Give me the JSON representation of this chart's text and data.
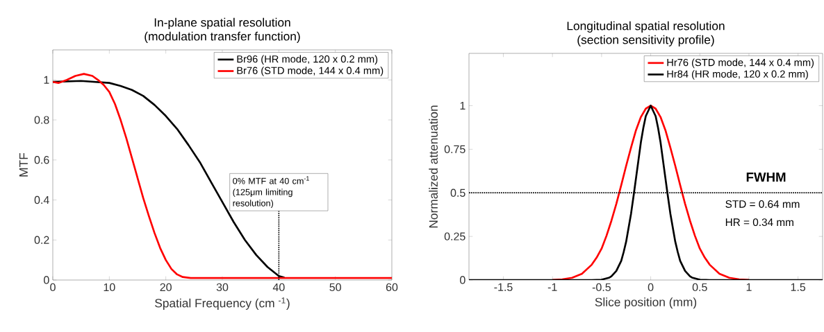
{
  "chart_data": [
    {
      "type": "line",
      "title": "In-plane spatial resolution",
      "subtitle": "(modulation transfer function)",
      "xlabel": "Spatial Frequency (cm $^{-1}$)",
      "ylabel": "MTF",
      "xlim": [
        0,
        60
      ],
      "ylim": [
        0,
        1.15
      ],
      "xticks": [
        0,
        10,
        20,
        30,
        40,
        50,
        60
      ],
      "yticks": [
        0,
        0.2,
        0.4,
        0.6,
        0.8,
        1
      ],
      "legend": "top right",
      "grid": false,
      "series": [
        {
          "name": "Br96 (HR mode, 120 x 0.2 mm)",
          "color": "#000000",
          "x": [
            0,
            5,
            10,
            12,
            14,
            16,
            18,
            20,
            22,
            24,
            26,
            28,
            30,
            32,
            34,
            36,
            38,
            40,
            41
          ],
          "values": [
            0.99,
            0.995,
            0.985,
            0.97,
            0.95,
            0.92,
            0.875,
            0.82,
            0.755,
            0.675,
            0.59,
            0.49,
            0.39,
            0.29,
            0.2,
            0.125,
            0.065,
            0.02,
            0.012
          ]
        },
        {
          "name": "Br76 (STD mode, 144 x 0.4 mm)",
          "color": "#ff0000",
          "x": [
            0,
            1,
            2.5,
            4,
            5.5,
            7,
            8,
            9,
            10,
            11,
            12,
            13,
            14,
            15,
            16,
            17,
            18,
            19,
            20,
            21,
            22,
            23,
            24.4,
            30,
            40,
            50,
            60
          ],
          "values": [
            0.99,
            0.985,
            1.0,
            1.02,
            1.03,
            1.02,
            1.0,
            0.975,
            0.94,
            0.88,
            0.8,
            0.71,
            0.61,
            0.51,
            0.41,
            0.32,
            0.235,
            0.16,
            0.1,
            0.055,
            0.028,
            0.015,
            0.01,
            0.01,
            0.01,
            0.01,
            0.01
          ]
        }
      ],
      "ref_lines": [
        {
          "axis": "x",
          "value": 40,
          "color": "#000000",
          "line_style": "dotted",
          "label": "0% MTF at 40 cm$^{-1}$ (125μm limiting resolution)"
        }
      ]
    },
    {
      "type": "line",
      "title": "Longitudinal spatial resolution",
      "subtitle": "(section sensitivity profile)",
      "xlabel": "Slice position (mm)",
      "ylabel": "Normalized attenuation",
      "xlim": [
        -1.85,
        1.75
      ],
      "ylim": [
        0,
        1.3
      ],
      "xticks": [
        -1.5,
        -1,
        -0.5,
        0,
        0.5,
        1,
        1.5
      ],
      "yticks": [
        0,
        0.25,
        0.5,
        0.75,
        1
      ],
      "legend": "top right",
      "grid": false,
      "series": [
        {
          "name": "Hr76 (STD mode, 144 x 0.4 mm)",
          "color": "#ff0000",
          "x": [
            -1.0,
            -0.9,
            -0.8,
            -0.7,
            -0.6,
            -0.55,
            -0.5,
            -0.45,
            -0.4,
            -0.35,
            -0.3,
            -0.25,
            -0.2,
            -0.15,
            -0.1,
            -0.05,
            0,
            0.05,
            0.1,
            0.15,
            0.2,
            0.25,
            0.3,
            0.35,
            0.4,
            0.45,
            0.5,
            0.55,
            0.6,
            0.7,
            0.8,
            0.9,
            1.0
          ],
          "values": [
            0.001,
            0.004,
            0.013,
            0.036,
            0.088,
            0.129,
            0.18,
            0.254,
            0.34,
            0.437,
            0.544,
            0.655,
            0.76,
            0.859,
            0.935,
            0.983,
            1,
            0.983,
            0.935,
            0.859,
            0.76,
            0.655,
            0.544,
            0.437,
            0.34,
            0.254,
            0.18,
            0.129,
            0.088,
            0.036,
            0.013,
            0.004,
            0.001
          ]
        },
        {
          "name": "Hr84 (HR mode, 120 x 0.2 mm)",
          "color": "#000000",
          "x": [
            -1.85,
            -0.6,
            -0.5,
            -0.42,
            -0.4,
            -0.35,
            -0.3,
            -0.275,
            -0.25,
            -0.2,
            -0.17,
            -0.125,
            -0.1,
            -0.075,
            -0.05,
            0,
            0.05,
            0.075,
            0.1,
            0.125,
            0.17,
            0.2,
            0.25,
            0.275,
            0.3,
            0.35,
            0.4,
            0.42,
            0.5,
            0.6,
            1.75
          ],
          "values": [
            0,
            0,
            0.002,
            0.014,
            0.021,
            0.052,
            0.11,
            0.161,
            0.22,
            0.381,
            0.5,
            0.686,
            0.79,
            0.873,
            0.94,
            1,
            0.94,
            0.873,
            0.79,
            0.686,
            0.5,
            0.381,
            0.22,
            0.161,
            0.11,
            0.052,
            0.021,
            0.014,
            0.002,
            0,
            0
          ]
        }
      ],
      "ref_lines": [
        {
          "axis": "y",
          "value": 0.5,
          "color": "#000000",
          "line_style": "dotted"
        }
      ],
      "annotations": [
        "FWHM",
        "STD = 0.64 mm",
        "HR   = 0.34 mm"
      ]
    }
  ]
}
